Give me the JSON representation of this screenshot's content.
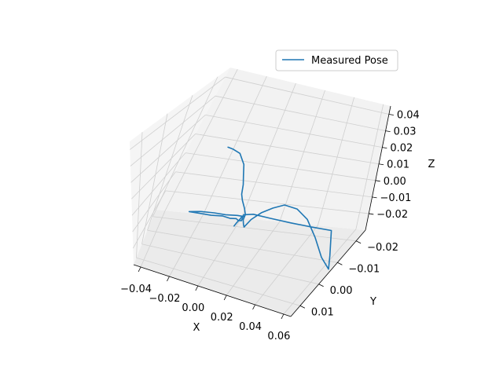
{
  "chart_data": {
    "type": "line",
    "projection": "3d",
    "grid": true,
    "legend_position": "top-right",
    "series": [
      {
        "name": "Measured Pose",
        "color": "#1f77b4",
        "x": [
          -0.015,
          -0.01,
          -0.003,
          0.003,
          0.006,
          0.009,
          0.011,
          0.013,
          0.016,
          0.018,
          0.018,
          0.019,
          0.019,
          0.022,
          0.027,
          0.033,
          0.039,
          0.046,
          0.052,
          0.057,
          0.061,
          0.064,
          0.062,
          0.059,
          0.05,
          0.04,
          0.03,
          0.022,
          0.018,
          0.016,
          0.012,
          0.008,
          0.003,
          -0.004,
          -0.012,
          -0.02,
          -0.026,
          -0.018,
          -0.008,
          0.002,
          0.012,
          0.018,
          0.018,
          0.016,
          0.013,
          0.011,
          0.009
        ],
        "y": [
          -0.012,
          -0.01,
          -0.008,
          -0.006,
          -0.004,
          -0.002,
          0.0,
          0.001,
          0.002,
          0.003,
          0.004,
          0.0045,
          0.004,
          0.003,
          0.002,
          0.001,
          0.0,
          -0.001,
          -0.002,
          -0.003,
          -0.004,
          -0.006,
          -0.008,
          -0.01,
          -0.007,
          -0.004,
          -0.001,
          0.002,
          0.004,
          0.003,
          0.001,
          -0.002,
          -0.004,
          -0.007,
          -0.01,
          -0.012,
          -0.013,
          -0.009,
          -0.005,
          -0.001,
          0.002,
          0.004,
          0.005,
          0.004,
          0.003,
          0.002,
          0.0
        ],
        "z": [
          0.02,
          0.022,
          0.023,
          0.02,
          0.017,
          0.014,
          0.011,
          0.009,
          0.006,
          0.004,
          0.002,
          0.0,
          -0.002,
          0.002,
          0.006,
          0.009,
          0.011,
          0.009,
          0.003,
          -0.008,
          -0.02,
          -0.029,
          -0.024,
          -0.012,
          -0.008,
          -0.004,
          0.0,
          0.004,
          0.005,
          0.0,
          -0.003,
          -0.006,
          -0.009,
          -0.012,
          -0.016,
          -0.018,
          -0.019,
          -0.014,
          -0.009,
          -0.004,
          0.001,
          0.004,
          0.005,
          0.002,
          -0.002,
          -0.005,
          -0.008
        ]
      }
    ],
    "xlabel": "X",
    "ylabel": "Y",
    "zlabel": "Z",
    "xlim": [
      -0.04,
      0.06
    ],
    "ylim": [
      -0.02,
      0.01
    ],
    "zlim": [
      -0.02,
      0.04
    ],
    "xticks": [
      "−0.04",
      "−0.02",
      "0.00",
      "0.02",
      "0.04",
      "0.06"
    ],
    "yticks": [
      "−0.02",
      "−0.01",
      "0.00",
      "0.01"
    ],
    "zticks": [
      "−0.02",
      "−0.01",
      "0.00",
      "0.01",
      "0.02",
      "0.03",
      "0.04"
    ],
    "pane_color": "#f2f2f2",
    "grid_color": "#cfcfcf"
  }
}
